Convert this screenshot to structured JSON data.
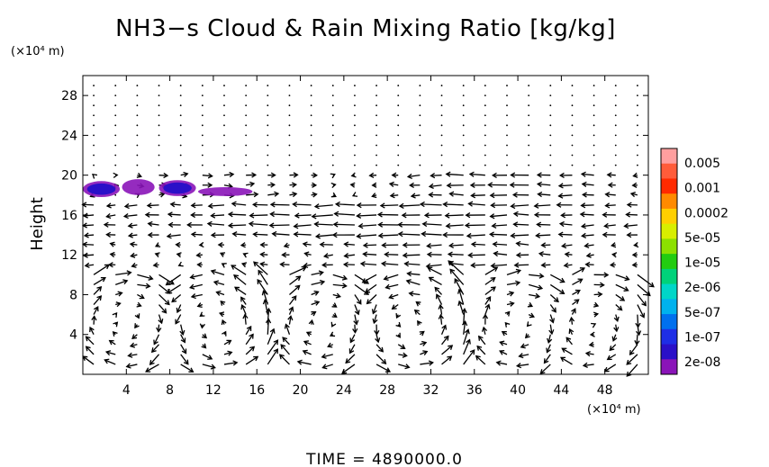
{
  "chart_data": {
    "type": "vector-field",
    "title": "NH3−s Cloud & Rain Mixing Ratio [kg/kg]",
    "ylabel": "Height",
    "x_unit_label": "(×10⁴ m)",
    "y_unit_label": "(×10⁴ m)",
    "xlim": [
      0,
      52
    ],
    "ylim": [
      0,
      30
    ],
    "xticks": [
      "4",
      "8",
      "12",
      "16",
      "20",
      "24",
      "28",
      "32",
      "36",
      "40",
      "44",
      "48"
    ],
    "yticks": [
      "4",
      "8",
      "12",
      "16",
      "20",
      "24",
      "28"
    ],
    "colorbar": {
      "labels": [
        "0.005",
        "0.001",
        "0.0002",
        "5e-05",
        "1e-05",
        "2e-06",
        "5e-07",
        "1e-07",
        "2e-08"
      ],
      "colors": [
        "#ff9f9f",
        "#ff5c3a",
        "#ff2a00",
        "#ff8a00",
        "#ffcf00",
        "#d8ee00",
        "#8ce000",
        "#22cc11",
        "#00d27a",
        "#00d6c8",
        "#00b2ee",
        "#0070ee",
        "#1e2ee6",
        "#2a10c8",
        "#8a14b8"
      ]
    },
    "cloud_regions": [
      {
        "x0": 0,
        "x1": 3.4,
        "y0": 17.8,
        "y1": 19.4,
        "level": "1e-07"
      },
      {
        "x0": 3.6,
        "x1": 6.6,
        "y0": 18.0,
        "y1": 19.6,
        "level": "2e-08"
      },
      {
        "x0": 7.0,
        "x1": 10.4,
        "y0": 17.9,
        "y1": 19.5,
        "level": "1e-07"
      },
      {
        "x0": 10.6,
        "x1": 15.6,
        "y0": 17.9,
        "y1": 18.8,
        "level": "2e-08"
      }
    ]
  },
  "time_label": "TIME  =  4890000.0"
}
